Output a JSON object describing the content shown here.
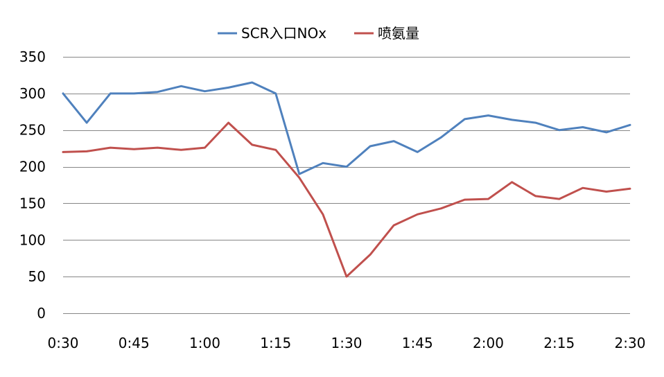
{
  "chart_data": {
    "type": "line",
    "title": "",
    "xlabel": "",
    "ylabel": "",
    "ylim": [
      0,
      350
    ],
    "y_ticks": [
      0,
      50,
      100,
      150,
      200,
      250,
      300,
      350
    ],
    "x": [
      "0:30",
      "0:35",
      "0:40",
      "0:45",
      "0:50",
      "0:55",
      "1:00",
      "1:05",
      "1:10",
      "1:15",
      "1:20",
      "1:25",
      "1:30",
      "1:35",
      "1:40",
      "1:45",
      "1:50",
      "1:55",
      "2:00",
      "2:05",
      "2:10",
      "2:15",
      "2:20",
      "2:25",
      "2:30"
    ],
    "x_tick_labels": [
      "0:30",
      "0:45",
      "1:00",
      "1:15",
      "1:30",
      "1:45",
      "2:00",
      "2:15",
      "2:30"
    ],
    "grid": true,
    "legend_position": "top-center",
    "series": [
      {
        "name": "SCR入口NOx",
        "color": "#4f81bd",
        "values": [
          300,
          260,
          300,
          300,
          302,
          310,
          303,
          308,
          315,
          300,
          190,
          205,
          200,
          228,
          235,
          220,
          240,
          265,
          270,
          264,
          260,
          250,
          254,
          247,
          257
        ]
      },
      {
        "name": "喷氨量",
        "color": "#c0504d",
        "values": [
          220,
          221,
          226,
          224,
          226,
          223,
          226,
          260,
          230,
          223,
          185,
          135,
          50,
          80,
          120,
          135,
          143,
          155,
          156,
          179,
          160,
          156,
          171,
          166,
          170
        ]
      }
    ]
  }
}
